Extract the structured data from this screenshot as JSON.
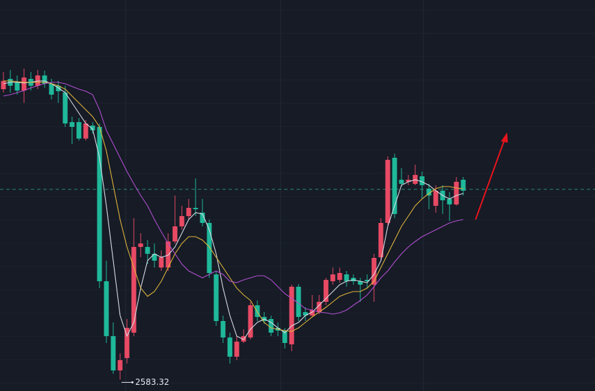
{
  "chart_data": {
    "type": "candlestick",
    "ylim": [
      2580,
      2694
    ],
    "up_color": "#e84a64",
    "down_color": "#1fb89a",
    "open": [
      2668,
      2671,
      2670,
      2667.6,
      2671,
      2669,
      2672,
      2669.6,
      2669,
      2667,
      2658.4,
      2658.4,
      2653.6,
      2657.4,
      2657,
      2612,
      2596,
      2586,
      2589.6,
      2597,
      2622,
      2622,
      2620,
      2616,
      2616,
      2623.6,
      2628,
      2631,
      2633.4,
      2632,
      2629,
      2614,
      2600.4,
      2595.6,
      2590,
      2594.4,
      2595.6,
      2605,
      2601.6,
      2601,
      2598.4,
      2597.6,
      2593.6,
      2610.4,
      2603,
      2602,
      2603,
      2606,
      2612,
      2612.4,
      2614,
      2613,
      2612,
      2612.4,
      2611,
      2619,
      2629,
      2648,
      2641.6,
      2641,
      2640.4,
      2642.6,
      2639,
      2634,
      2638.4,
      2636,
      2634.4,
      2641.6
    ],
    "close": [
      2670.4,
      2669,
      2667.6,
      2671.4,
      2669,
      2672,
      2669.6,
      2666.4,
      2667.4,
      2658,
      2657,
      2653.6,
      2658,
      2656,
      2612,
      2596,
      2586,
      2589,
      2598.4,
      2622,
      2623,
      2620,
      2618,
      2619,
      2623.6,
      2628,
      2631,
      2633.4,
      2633,
      2629,
      2614.4,
      2600.4,
      2595.6,
      2590,
      2594.4,
      2596,
      2605,
      2601.6,
      2600.4,
      2597,
      2597.6,
      2594,
      2610.4,
      2601.6,
      2602,
      2603.6,
      2606,
      2612.4,
      2614,
      2614.4,
      2612,
      2612,
      2611,
      2612,
      2618.8,
      2629,
      2647.4,
      2631.6,
      2640.4,
      2641.6,
      2643,
      2640,
      2637,
      2638.4,
      2635.6,
      2634.4,
      2641,
      2638.4
    ],
    "high": [
      2673,
      2673.6,
      2672,
      2674,
      2673,
      2673.6,
      2673.4,
      2671,
      2670.4,
      2669,
      2660,
      2659.6,
      2659,
      2658.4,
      2658,
      2618,
      2600,
      2591,
      2601,
      2630.4,
      2626,
      2624,
      2623,
      2621,
      2626,
      2637,
      2634,
      2636,
      2642,
      2636,
      2630,
      2615,
      2602,
      2597,
      2596,
      2598,
      2606,
      2606.4,
      2603,
      2602,
      2600,
      2598.4,
      2611,
      2611.2,
      2604.4,
      2608,
      2608,
      2613,
      2616,
      2616,
      2615,
      2614,
      2613,
      2614,
      2620,
      2630.4,
      2648.4,
      2649.2,
      2645,
      2643,
      2646,
      2644,
      2640.4,
      2640,
      2640,
      2638,
      2642.4,
      2642.4
    ],
    "low": [
      2667,
      2667,
      2666.4,
      2664,
      2667.6,
      2668,
      2668.4,
      2665,
      2664,
      2657,
      2652,
      2653,
      2653,
      2655,
      2610,
      2594,
      2585,
      2583.32,
      2588,
      2596,
      2619,
      2617,
      2616,
      2615,
      2615,
      2623,
      2627,
      2630,
      2631,
      2628,
      2613,
      2599,
      2594,
      2588,
      2589,
      2594,
      2595,
      2600.4,
      2599.6,
      2596,
      2596,
      2592.4,
      2591.6,
      2600.4,
      2600.4,
      2601.6,
      2602.4,
      2605,
      2611,
      2611.6,
      2610.4,
      2611,
      2606,
      2610,
      2606,
      2618,
      2628.4,
      2630.4,
      2639.6,
      2640,
      2640,
      2636,
      2633,
      2632,
      2631.6,
      2629.6,
      2634,
      2637
    ],
    "series": [
      {
        "color": "#d9dde6",
        "values": [
          2669.6,
          2670,
          2670,
          2669.8,
          2670,
          2670.4,
          2670.4,
          2669.6,
          2668.4,
          2667,
          2664,
          2661,
          2658,
          2656.4,
          2648,
          2634,
          2618,
          2602,
          2596,
          2600,
          2610,
          2618,
          2620,
          2619,
          2619.6,
          2622,
          2626,
          2630,
          2632,
          2631.6,
          2627,
          2620,
          2610,
          2602,
          2596,
          2595,
          2598,
          2600,
          2601,
          2600,
          2598.4,
          2597,
          2599,
          2600,
          2602,
          2603,
          2605,
          2607,
          2609,
          2611,
          2612,
          2612.4,
          2612,
          2611.6,
          2614,
          2618,
          2628,
          2634,
          2640,
          2641,
          2641.6,
          2641,
          2640,
          2638.4,
          2637,
          2636,
          2637,
          2637.6
        ]
      },
      {
        "color": "#e0b43a",
        "values": [
          2670.4,
          2670.4,
          2670.2,
          2670,
          2670,
          2670,
          2670,
          2669.6,
          2669,
          2668,
          2666,
          2664,
          2662,
          2660,
          2657,
          2650,
          2640,
          2630,
          2622,
          2616,
          2610,
          2607.6,
          2609,
          2612,
          2616,
          2620,
          2623,
          2625,
          2625,
          2624,
          2622,
          2619,
          2616,
          2613,
          2610,
          2608,
          2606.4,
          2603,
          2600,
          2598.4,
          2598,
          2597.6,
          2597.4,
          2598.4,
          2600,
          2601.6,
          2603,
          2604.4,
          2606,
          2607.6,
          2608.4,
          2609,
          2609,
          2610,
          2612,
          2616,
          2620,
          2624,
          2628,
          2631,
          2634,
          2636,
          2637.6,
          2639,
          2639.6,
          2639.6,
          2639.2,
          2639
        ]
      },
      {
        "color": "#b24fd0",
        "values": [
          2666,
          2666.4,
          2667,
          2667.6,
          2668.4,
          2669,
          2669.6,
          2670,
          2670,
          2669.6,
          2668.8,
          2668,
          2667.4,
          2666.4,
          2662,
          2656,
          2652,
          2648,
          2644,
          2640.4,
          2637,
          2634,
          2630,
          2626.4,
          2623,
          2620,
          2617,
          2615,
          2614,
          2613,
          2614,
          2615,
          2614,
          2612,
          2611.6,
          2612.4,
          2613,
          2613.6,
          2613.6,
          2612.4,
          2610.4,
          2608.4,
          2607,
          2605.6,
          2604,
          2603.6,
          2603,
          2602.8,
          2602.4,
          2602.8,
          2603.6,
          2605,
          2606.4,
          2608,
          2610.4,
          2613,
          2615,
          2617.6,
          2620,
          2622,
          2623.6,
          2625,
          2626,
          2627,
          2628,
          2629,
          2629.6,
          2630
        ]
      }
    ],
    "price_line": 2638.8,
    "price_line_color": "#2a8a78"
  }
}
